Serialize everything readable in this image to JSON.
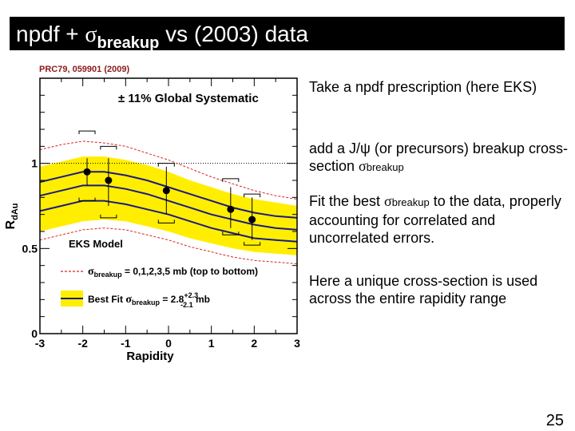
{
  "slide": {
    "title_prefix": "npdf + ",
    "title_sigma": "σ",
    "title_sub": "breakup",
    "title_suffix": " vs (2003) data",
    "page_number": "25"
  },
  "bullets": [
    {
      "text": "Take a npdf prescription (here EKS)"
    },
    {
      "pre": "add a J/ψ (or precursors) breakup cross-section ",
      "sigma": "σ",
      "sub": "breakup"
    },
    {
      "pre": "Fit the best ",
      "sigma": "σ",
      "sub": "breakup",
      "post": " to the data, properly accounting for correlated and uncorrelated errors."
    },
    {
      "text": "Here a unique cross-section is used across the entire rapidity range"
    }
  ],
  "chart_data": {
    "type": "line",
    "reference": "PRC79, 059901 (2009)",
    "annotation_systematic": "± 11% Global Systematic",
    "model_label": "EKS Model",
    "legend_sigma": "σ",
    "legend_sub": "breakup",
    "legend_lines_text": " = 0,1,2,3,5 mb (top to bottom)",
    "legend_bestfit_prefix": "Best Fit ",
    "legend_bestfit_value": " = 2.8",
    "legend_bestfit_up": "+2.3",
    "legend_bestfit_down": "-2.1",
    "legend_bestfit_unit": " mb",
    "xlabel": "Rapidity",
    "ylabel_main": "R",
    "ylabel_sub": "dAu",
    "xlim": [
      -3,
      3
    ],
    "ylim": [
      0,
      1.5
    ],
    "x_ticks": [
      "-3",
      "-2",
      "-1",
      "0",
      "1",
      "2",
      "3"
    ],
    "y_ticks": [
      {
        "v": 0,
        "label": "0"
      },
      {
        "v": 0.5,
        "label": "0.5"
      },
      {
        "v": 1,
        "label": "1"
      }
    ],
    "band_color": "#ffee00",
    "curve_x": [
      -3,
      -2.5,
      -2,
      -1.5,
      -1,
      -0.5,
      0,
      0.5,
      1,
      1.5,
      2,
      2.5,
      3
    ],
    "dashed_lines": [
      {
        "name": "0 mb",
        "y": [
          1.08,
          1.11,
          1.13,
          1.12,
          1.1,
          1.06,
          1.02,
          0.97,
          0.92,
          0.88,
          0.84,
          0.81,
          0.79
        ]
      },
      {
        "name": "5 mb",
        "y": [
          0.55,
          0.58,
          0.61,
          0.62,
          0.61,
          0.58,
          0.55,
          0.51,
          0.48,
          0.45,
          0.43,
          0.42,
          0.41
        ]
      }
    ],
    "band_upper": [
      0.98,
      1.01,
      1.04,
      1.04,
      1.02,
      0.99,
      0.95,
      0.9,
      0.86,
      0.82,
      0.79,
      0.77,
      0.75
    ],
    "band_lower": [
      0.6,
      0.63,
      0.66,
      0.67,
      0.66,
      0.63,
      0.6,
      0.56,
      0.53,
      0.5,
      0.48,
      0.47,
      0.46
    ],
    "solid_lines": [
      {
        "name": "upper",
        "y": [
          0.89,
          0.92,
          0.95,
          0.95,
          0.93,
          0.9,
          0.86,
          0.82,
          0.78,
          0.74,
          0.71,
          0.69,
          0.68
        ]
      },
      {
        "name": "best fit",
        "y": [
          0.81,
          0.84,
          0.87,
          0.87,
          0.85,
          0.82,
          0.78,
          0.74,
          0.7,
          0.67,
          0.64,
          0.62,
          0.61
        ]
      },
      {
        "name": "lower",
        "y": [
          0.72,
          0.75,
          0.78,
          0.78,
          0.76,
          0.73,
          0.7,
          0.66,
          0.62,
          0.59,
          0.56,
          0.55,
          0.54
        ]
      }
    ],
    "points": [
      {
        "x": -1.9,
        "y": 0.95,
        "err_low": 0.87,
        "err_high": 1.03,
        "sys_low": 0.78,
        "sys_high": 1.19
      },
      {
        "x": -1.4,
        "y": 0.9,
        "err_low": 0.75,
        "err_high": 1.03,
        "sys_low": 0.68,
        "sys_high": 1.1
      },
      {
        "x": -0.05,
        "y": 0.84,
        "err_low": 0.7,
        "err_high": 0.98,
        "sys_low": 0.65,
        "sys_high": 1.0
      },
      {
        "x": 1.45,
        "y": 0.73,
        "err_low": 0.62,
        "err_high": 0.86,
        "sys_low": 0.58,
        "sys_high": 0.91
      },
      {
        "x": 1.95,
        "y": 0.67,
        "err_low": 0.55,
        "err_high": 0.8,
        "sys_low": 0.52,
        "sys_high": 0.82
      }
    ]
  }
}
